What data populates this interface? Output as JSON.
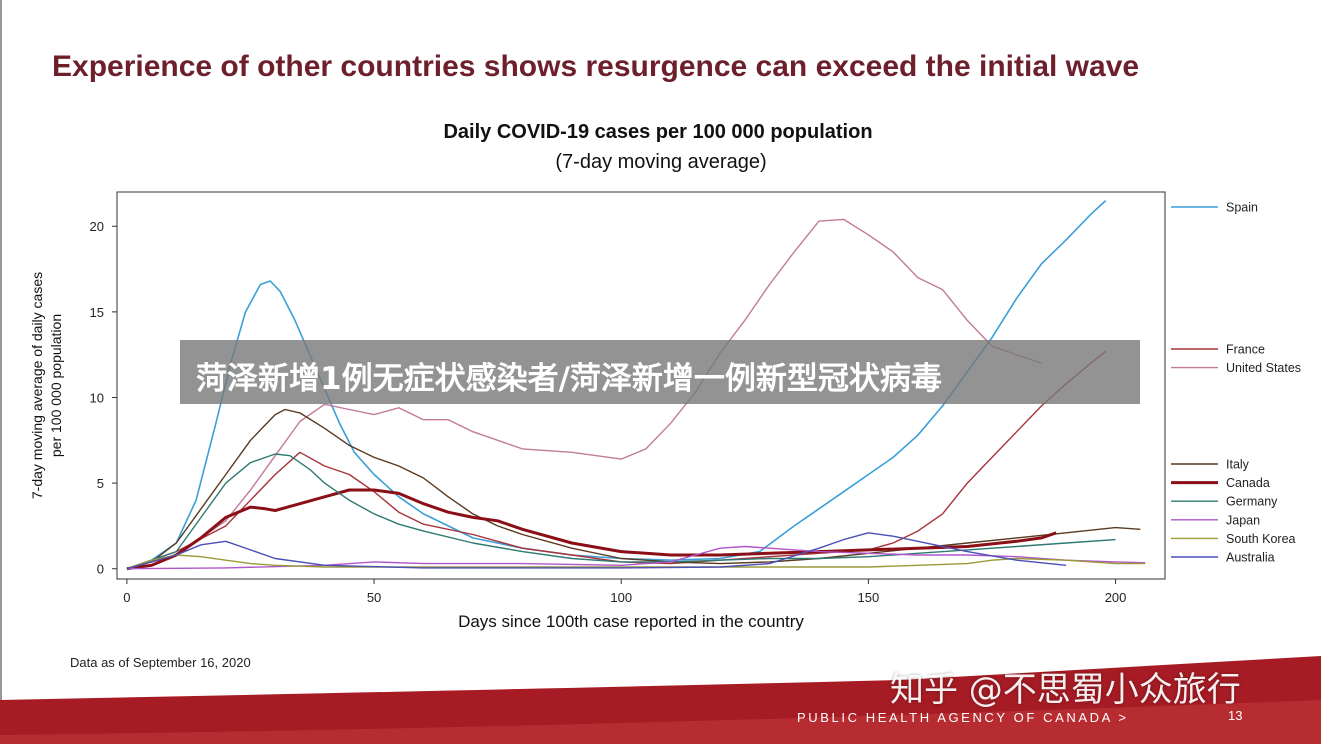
{
  "slide": {
    "title": "Experience of other countries shows resurgence can exceed the initial wave",
    "data_note": "Data as of September 16, 2020",
    "footer_agency": "PUBLIC HEALTH AGENCY OF CANADA >",
    "page_number": "13"
  },
  "overlay": {
    "headline": "菏泽新增1例无症状感染者/菏泽新增一例新型冠状病毒",
    "watermark": "知乎 @不思蜀小众旅行"
  },
  "colors": {
    "title": "#6e1f2c",
    "footer_band": "#a61b24"
  },
  "chart_data": {
    "type": "line",
    "title": "Daily COVID-19 cases per 100 000 population",
    "subtitle": "(7-day moving average)",
    "xlabel": "Days since 100th case reported in the country",
    "ylabel_lines": [
      "7-day moving average of daily cases",
      "per 100 000 population"
    ],
    "xlim": [
      -2,
      210
    ],
    "ylim": [
      -0.6,
      22
    ],
    "xticks": [
      0,
      50,
      100,
      150,
      200
    ],
    "yticks": [
      0,
      5,
      10,
      15,
      20
    ],
    "legend_position": "right",
    "legend_groups": [
      [
        "Spain"
      ],
      [
        "France",
        "United States"
      ],
      [
        "Italy",
        "Canada",
        "Germany",
        "Japan",
        "South Korea",
        "Australia"
      ]
    ],
    "series": [
      {
        "name": "Spain",
        "color": "#3b9fd8",
        "width": 1.6,
        "x": [
          0,
          5,
          10,
          14,
          18,
          21,
          24,
          27,
          29,
          31,
          34,
          37,
          40,
          43,
          46,
          50,
          55,
          60,
          65,
          70,
          75,
          80,
          90,
          100,
          110,
          120,
          128,
          135,
          140,
          145,
          150,
          155,
          160,
          165,
          170,
          175,
          180,
          185,
          190,
          195,
          198
        ],
        "y": [
          0,
          0.5,
          1.5,
          4,
          8.5,
          12,
          15,
          16.6,
          16.8,
          16.2,
          14.5,
          12.5,
          10.5,
          8.5,
          6.8,
          5.5,
          4.2,
          3.2,
          2.5,
          1.8,
          1.5,
          1.2,
          0.8,
          0.6,
          0.5,
          0.6,
          1,
          2.5,
          3.5,
          4.5,
          5.5,
          6.5,
          7.8,
          9.5,
          11.5,
          13.5,
          15.8,
          17.8,
          19.2,
          20.7,
          21.5
        ]
      },
      {
        "name": "France",
        "color": "#a8323a",
        "width": 1.4,
        "x": [
          0,
          10,
          20,
          25,
          30,
          35,
          40,
          45,
          50,
          55,
          60,
          70,
          80,
          90,
          100,
          110,
          120,
          130,
          140,
          150,
          155,
          160,
          165,
          170,
          175,
          180,
          185,
          190,
          195,
          198
        ],
        "y": [
          0,
          1,
          2.5,
          4,
          5.5,
          6.8,
          6,
          5.5,
          4.5,
          3.3,
          2.6,
          2,
          1.2,
          0.8,
          0.4,
          0.3,
          0.5,
          0.7,
          0.9,
          1.1,
          1.5,
          2.2,
          3.2,
          5,
          6.5,
          8,
          9.5,
          10.8,
          12,
          12.7
        ]
      },
      {
        "name": "United States",
        "color": "#c27a9a",
        "width": 1.4,
        "x": [
          0,
          10,
          20,
          25,
          30,
          35,
          40,
          45,
          50,
          55,
          60,
          65,
          70,
          80,
          90,
          100,
          105,
          110,
          115,
          120,
          125,
          130,
          135,
          140,
          145,
          150,
          155,
          160,
          165,
          170,
          175,
          180,
          185
        ],
        "y": [
          0,
          0.8,
          2.8,
          4.6,
          6.6,
          8.6,
          9.6,
          9.3,
          9,
          9.4,
          8.7,
          8.7,
          8,
          7,
          6.8,
          6.4,
          7,
          8.5,
          10.3,
          12.6,
          14.5,
          16.6,
          18.5,
          20.3,
          20.4,
          19.5,
          18.5,
          17,
          16.3,
          14.5,
          13,
          12.5,
          12
        ]
      },
      {
        "name": "Italy",
        "color": "#5a3a20",
        "width": 1.4,
        "x": [
          0,
          5,
          10,
          15,
          20,
          25,
          30,
          32,
          35,
          40,
          45,
          50,
          55,
          60,
          65,
          70,
          75,
          80,
          90,
          100,
          110,
          120,
          130,
          140,
          150,
          160,
          170,
          180,
          190,
          200,
          205
        ],
        "y": [
          0,
          0.4,
          1.5,
          3.5,
          5.5,
          7.5,
          9,
          9.3,
          9.1,
          8.2,
          7.2,
          6.5,
          6,
          5.3,
          4.2,
          3.2,
          2.5,
          2,
          1.2,
          0.6,
          0.4,
          0.3,
          0.4,
          0.6,
          0.9,
          1.2,
          1.5,
          1.8,
          2.1,
          2.4,
          2.3
        ]
      },
      {
        "name": "Canada",
        "color": "#8b0f16",
        "width": 3,
        "x": [
          0,
          5,
          10,
          15,
          20,
          25,
          28,
          30,
          35,
          40,
          45,
          50,
          55,
          60,
          65,
          70,
          75,
          80,
          90,
          100,
          110,
          120,
          130,
          140,
          150,
          160,
          170,
          180,
          185,
          188
        ],
        "y": [
          0,
          0.2,
          0.8,
          1.8,
          3,
          3.6,
          3.5,
          3.4,
          3.8,
          4.2,
          4.6,
          4.6,
          4.4,
          3.8,
          3.3,
          3,
          2.8,
          2.3,
          1.5,
          1,
          0.8,
          0.8,
          0.9,
          1,
          1.1,
          1.2,
          1.3,
          1.6,
          1.8,
          2.1
        ]
      },
      {
        "name": "Germany",
        "color": "#2e7a72",
        "width": 1.4,
        "x": [
          0,
          10,
          15,
          20,
          25,
          30,
          33,
          37,
          40,
          45,
          50,
          55,
          60,
          70,
          80,
          90,
          100,
          110,
          120,
          130,
          140,
          150,
          160,
          170,
          180,
          190,
          200
        ],
        "y": [
          0,
          1,
          3,
          5,
          6.2,
          6.7,
          6.6,
          5.8,
          5,
          4,
          3.2,
          2.6,
          2.2,
          1.5,
          1,
          0.6,
          0.4,
          0.4,
          0.5,
          0.6,
          0.6,
          0.7,
          0.9,
          1.1,
          1.3,
          1.5,
          1.7
        ]
      },
      {
        "name": "Japan",
        "color": "#b155c9",
        "width": 1.4,
        "x": [
          0,
          20,
          40,
          50,
          60,
          80,
          100,
          110,
          115,
          120,
          125,
          130,
          140,
          150,
          160,
          170,
          180,
          190,
          200,
          206
        ],
        "y": [
          0,
          0.05,
          0.2,
          0.4,
          0.3,
          0.3,
          0.2,
          0.4,
          0.8,
          1.2,
          1.3,
          1.2,
          1,
          0.9,
          0.8,
          0.8,
          0.7,
          0.5,
          0.4,
          0.35
        ]
      },
      {
        "name": "South Korea",
        "color": "#9a9a3a",
        "width": 1.4,
        "x": [
          0,
          5,
          10,
          15,
          20,
          25,
          30,
          40,
          50,
          60,
          80,
          100,
          120,
          140,
          150,
          160,
          170,
          175,
          180,
          190,
          200,
          206
        ],
        "y": [
          0,
          0.5,
          0.8,
          0.7,
          0.5,
          0.3,
          0.2,
          0.1,
          0.1,
          0.1,
          0.1,
          0.1,
          0.1,
          0.1,
          0.1,
          0.2,
          0.3,
          0.5,
          0.6,
          0.5,
          0.3,
          0.3
        ]
      },
      {
        "name": "Australia",
        "color": "#4b4fb8",
        "width": 1.4,
        "x": [
          0,
          10,
          15,
          20,
          25,
          30,
          40,
          60,
          80,
          100,
          120,
          130,
          140,
          145,
          150,
          155,
          160,
          170,
          180,
          190
        ],
        "y": [
          0,
          0.8,
          1.4,
          1.6,
          1.1,
          0.6,
          0.2,
          0.05,
          0.05,
          0.05,
          0.1,
          0.3,
          1.2,
          1.7,
          2.1,
          1.9,
          1.6,
          1,
          0.5,
          0.2
        ]
      }
    ]
  }
}
